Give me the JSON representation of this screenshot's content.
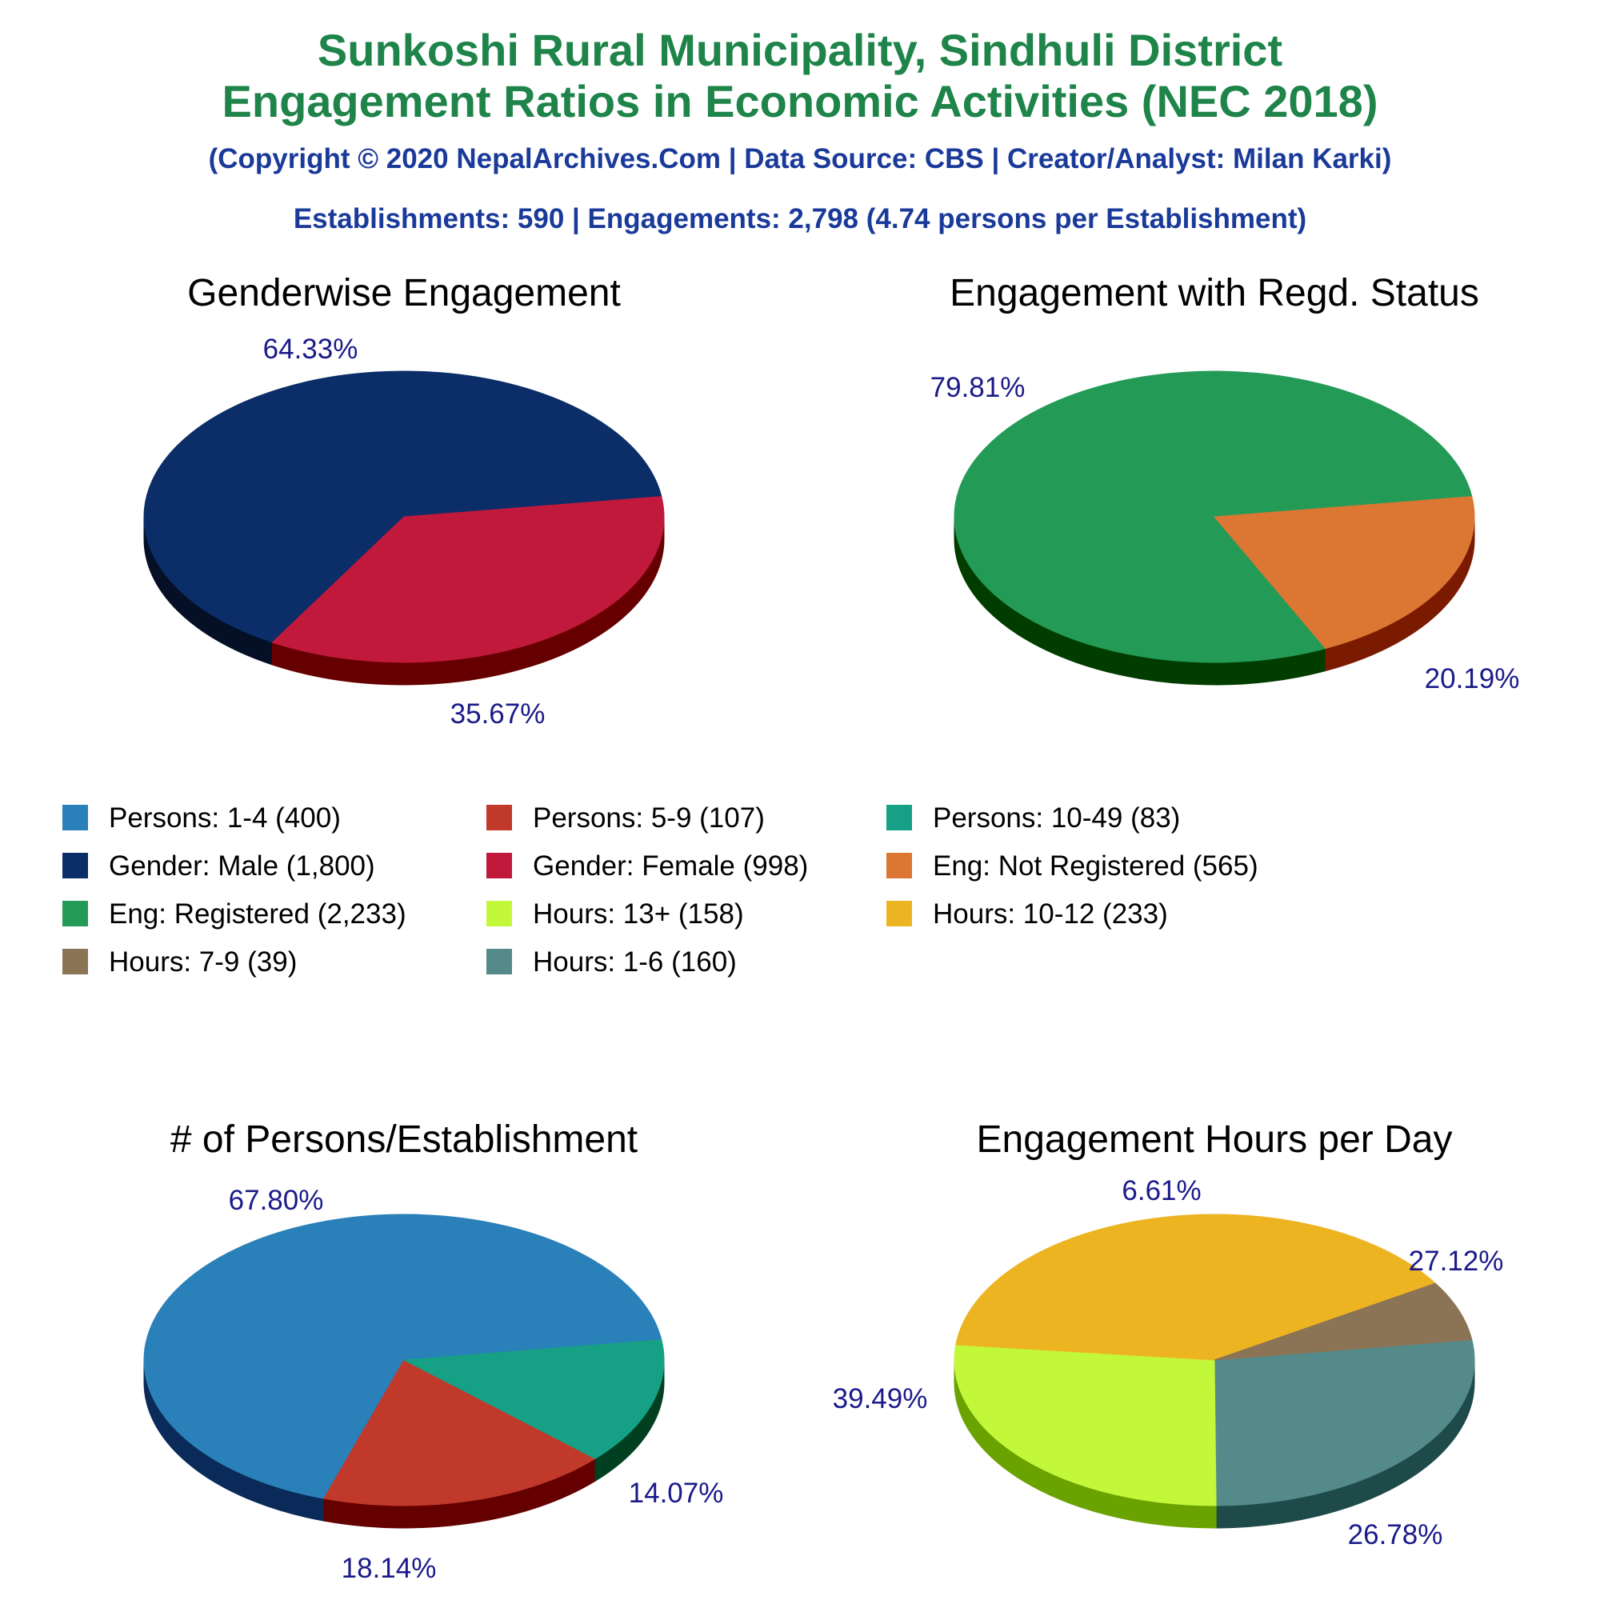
{
  "header": {
    "title_line1": "Sunkoshi Rural Municipality, Sindhuli District",
    "title_line2": "Engagement Ratios in Economic Activities (NEC 2018)",
    "copyright": "(Copyright © 2020 NepalArchives.Com | Data Source: CBS | Creator/Analyst: Milan Karki)",
    "summary": "Establishments: 590 | Engagements: 2,798 (4.74 persons per Establishment)"
  },
  "colors": {
    "title": "#1e8449",
    "subtitle": "#1a3a9a",
    "percent_label": "#1a1a8a"
  },
  "chart_data": [
    {
      "type": "pie",
      "title": "Genderwise Engagement",
      "slices": [
        {
          "label": "Gender: Male",
          "value": 1800,
          "percent_label": "64.33%",
          "color": "#0b2d68",
          "side_color": "#050f26"
        },
        {
          "label": "Gender: Female",
          "value": 998,
          "percent_label": "35.67%",
          "color": "#c0193c",
          "side_color": "#660000"
        }
      ]
    },
    {
      "type": "pie",
      "title": "Engagement with Regd. Status",
      "slices": [
        {
          "label": "Eng: Registered",
          "value": 2233,
          "percent_label": "79.81%",
          "color": "#239b56",
          "side_color": "#023d00"
        },
        {
          "label": "Eng: Not Registered",
          "value": 565,
          "percent_label": "20.19%",
          "color": "#dc7633",
          "side_color": "#7a1a00"
        }
      ]
    },
    {
      "type": "pie",
      "title": "# of Persons/Establishment",
      "slices": [
        {
          "label": "Persons: 1-4",
          "value": 400,
          "percent_label": "67.80%",
          "color": "#2a80b9",
          "side_color": "#0a2a5a"
        },
        {
          "label": "Persons: 5-9",
          "value": 107,
          "percent_label": "18.14%",
          "color": "#c0392b",
          "side_color": "#650000"
        },
        {
          "label": "Persons: 10-49",
          "value": 83,
          "percent_label": "14.07%",
          "color": "#16a085",
          "side_color": "#004020"
        }
      ]
    },
    {
      "type": "pie",
      "title": "Engagement Hours per Day",
      "slices": [
        {
          "label": "Hours: 1-6",
          "value": 160,
          "percent_label": "27.12%",
          "color": "#548a8a",
          "side_color": "#1f4a4a"
        },
        {
          "label": "Hours: 13+",
          "value": 158,
          "percent_label": "26.78%",
          "color": "#c3f73a",
          "side_color": "#6aa300"
        },
        {
          "label": "Hours: 10-12",
          "value": 233,
          "percent_label": "39.49%",
          "color": "#edb422",
          "side_color": "#9a5a00"
        },
        {
          "label": "Hours: 7-9",
          "value": 39,
          "percent_label": "6.61%",
          "color": "#8b7355",
          "side_color": "#4a3a20"
        }
      ]
    }
  ],
  "legend": {
    "items": [
      {
        "text": "Persons: 1-4 (400)",
        "color": "#2a80b9"
      },
      {
        "text": "Persons: 5-9 (107)",
        "color": "#c0392b"
      },
      {
        "text": "Persons: 10-49 (83)",
        "color": "#16a085"
      },
      {
        "text": "Gender: Male (1,800)",
        "color": "#0b2d68"
      },
      {
        "text": "Gender: Female (998)",
        "color": "#c0193c"
      },
      {
        "text": "Eng: Not Registered (565)",
        "color": "#dc7633"
      },
      {
        "text": "Eng: Registered (2,233)",
        "color": "#239b56"
      },
      {
        "text": "Hours: 13+ (158)",
        "color": "#c3f73a"
      },
      {
        "text": "Hours: 10-12 (233)",
        "color": "#edb422"
      },
      {
        "text": "Hours: 7-9 (39)",
        "color": "#8b7355"
      },
      {
        "text": "Hours: 1-6 (160)",
        "color": "#548a8a"
      }
    ]
  }
}
